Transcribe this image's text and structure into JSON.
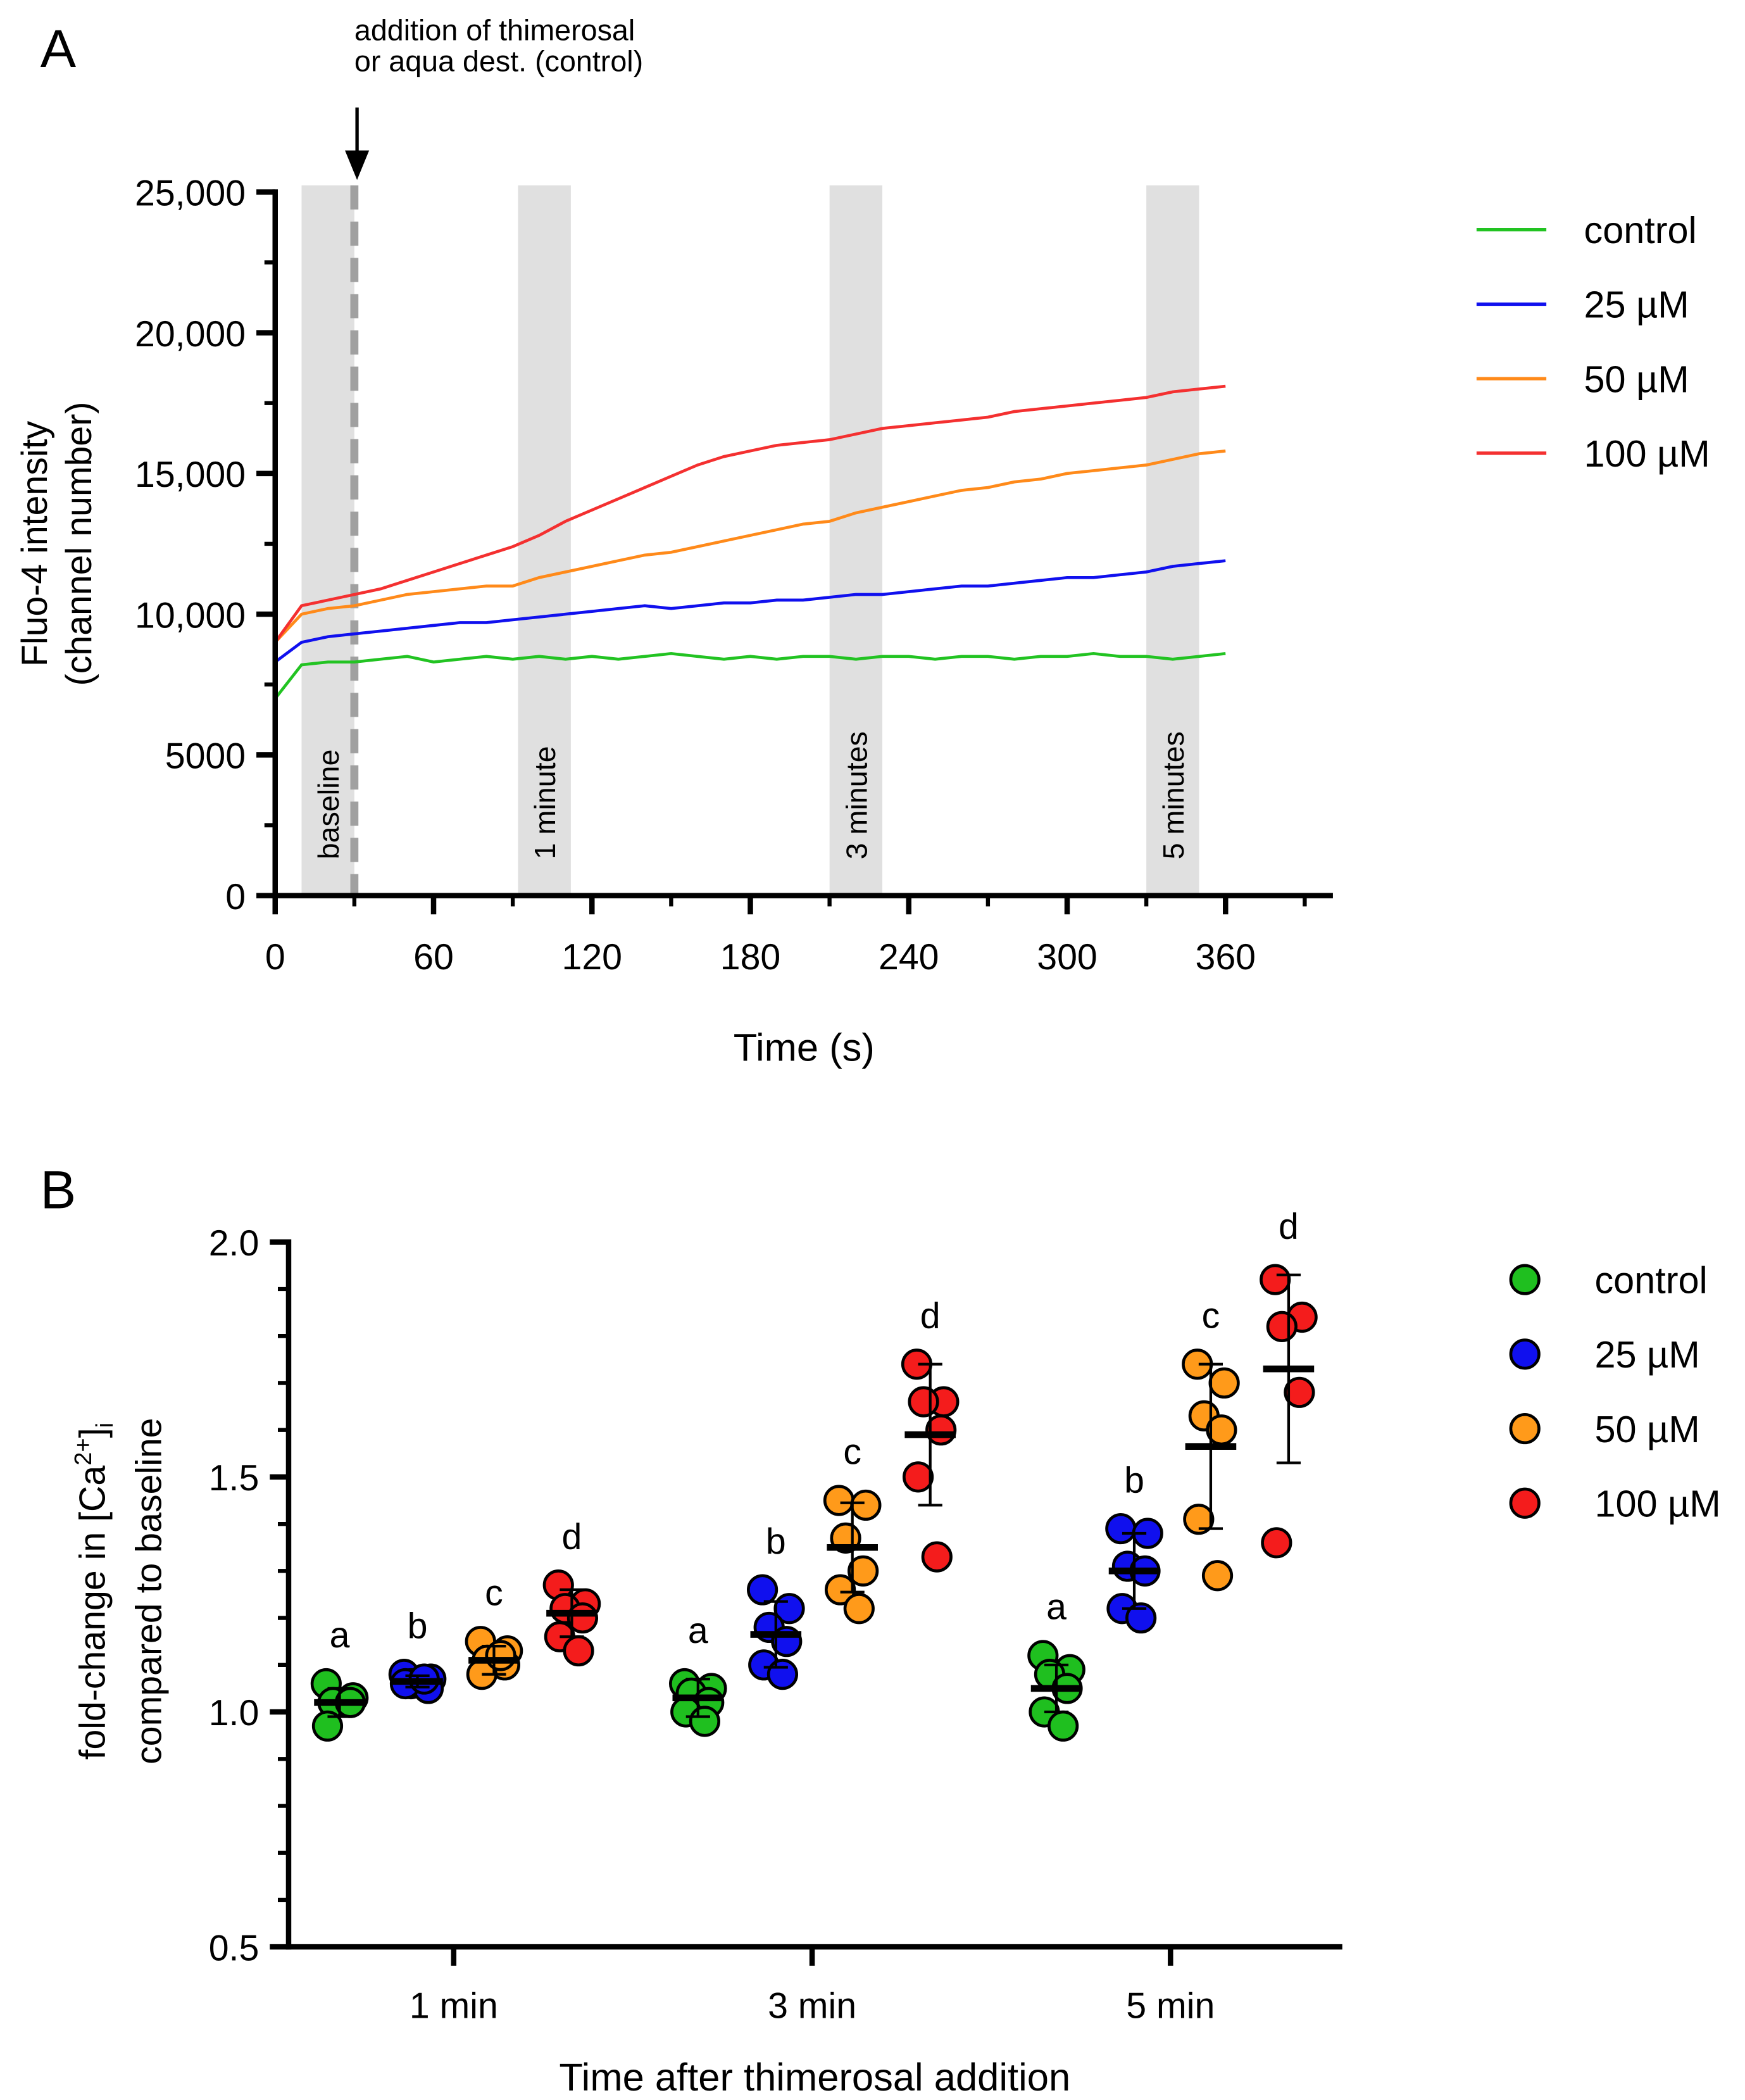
{
  "chart_data": [
    {
      "type": "line",
      "panel_label": "A",
      "xlabel": "Time (s)",
      "ylabel_lines": [
        "Fluo-4 intensity",
        "(channel number)"
      ],
      "xlim": [
        0,
        400
      ],
      "ylim": [
        0,
        25000
      ],
      "xticks": [
        0,
        60,
        120,
        180,
        240,
        300,
        360
      ],
      "yticks": [
        0,
        5000,
        10000,
        15000,
        20000,
        25000
      ],
      "ytick_labels": [
        "0",
        "5000",
        "10,000",
        "15,000",
        "20,000",
        "25,000"
      ],
      "annotation_lines": [
        "addition of thimerosal",
        "or aqua dest. (control)"
      ],
      "annotation_time": 30,
      "windows": [
        {
          "label": "baseline",
          "start": 10,
          "end": 30
        },
        {
          "label": "1 minute",
          "start": 92,
          "end": 112
        },
        {
          "label": "3 minutes",
          "start": 210,
          "end": 230
        },
        {
          "label": "5 minutes",
          "start": 330,
          "end": 350
        }
      ],
      "legend_position": "right",
      "x": [
        0,
        10,
        20,
        30,
        40,
        50,
        60,
        70,
        80,
        90,
        100,
        110,
        120,
        130,
        140,
        150,
        160,
        170,
        180,
        190,
        200,
        210,
        220,
        230,
        240,
        250,
        260,
        270,
        280,
        290,
        300,
        310,
        320,
        330,
        340,
        350,
        360
      ],
      "series": [
        {
          "name": "control",
          "color": "#22c322",
          "values": [
            7000,
            8200,
            8300,
            8300,
            8400,
            8500,
            8300,
            8400,
            8500,
            8400,
            8500,
            8400,
            8500,
            8400,
            8500,
            8600,
            8500,
            8400,
            8500,
            8400,
            8500,
            8500,
            8400,
            8500,
            8500,
            8400,
            8500,
            8500,
            8400,
            8500,
            8500,
            8600,
            8500,
            8500,
            8400,
            8500,
            8600
          ]
        },
        {
          "name": "25 µM",
          "color": "#1010ee",
          "values": [
            8300,
            9000,
            9200,
            9300,
            9400,
            9500,
            9600,
            9700,
            9700,
            9800,
            9900,
            10000,
            10100,
            10200,
            10300,
            10200,
            10300,
            10400,
            10400,
            10500,
            10500,
            10600,
            10700,
            10700,
            10800,
            10900,
            11000,
            11000,
            11100,
            11200,
            11300,
            11300,
            11400,
            11500,
            11700,
            11800,
            11900
          ]
        },
        {
          "name": "50 µM",
          "color": "#ff8a1a",
          "values": [
            9000,
            10000,
            10200,
            10300,
            10500,
            10700,
            10800,
            10900,
            11000,
            11000,
            11300,
            11500,
            11700,
            11900,
            12100,
            12200,
            12400,
            12600,
            12800,
            13000,
            13200,
            13300,
            13600,
            13800,
            14000,
            14200,
            14400,
            14500,
            14700,
            14800,
            15000,
            15100,
            15200,
            15300,
            15500,
            15700,
            15800
          ]
        },
        {
          "name": "100 µM",
          "color": "#f43030",
          "values": [
            9000,
            10300,
            10500,
            10700,
            10900,
            11200,
            11500,
            11800,
            12100,
            12400,
            12800,
            13300,
            13700,
            14100,
            14500,
            14900,
            15300,
            15600,
            15800,
            16000,
            16100,
            16200,
            16400,
            16600,
            16700,
            16800,
            16900,
            17000,
            17200,
            17300,
            17400,
            17500,
            17600,
            17700,
            17900,
            18000,
            18100
          ]
        }
      ]
    },
    {
      "type": "scatter",
      "panel_label": "B",
      "xlabel": "Time after thimerosal addition",
      "ylabel_line1": "fold-change in [Ca",
      "ylabel_sup": "2+",
      "ylabel_bracket": "]",
      "ylabel_sub": "i",
      "ylabel_line2": "compared to baseline",
      "ylim": [
        0.5,
        2.0
      ],
      "yticks": [
        0.5,
        1.0,
        1.5,
        2.0
      ],
      "ytick_labels": [
        "0.5",
        "1.0",
        "1.5",
        "2.0"
      ],
      "categories": [
        "1 min",
        "3 min",
        "5 min"
      ],
      "legend_position": "right",
      "series": [
        {
          "name": "control",
          "color": "#1fbf1f",
          "points": [
            [
              1.06,
              1.03,
              1.02,
              1.02,
              0.97
            ],
            [
              1.06,
              1.05,
              1.04,
              1.02,
              1.0,
              0.98
            ],
            [
              1.12,
              1.09,
              1.08,
              1.05,
              1.0,
              0.97
            ]
          ],
          "mean": [
            1.02,
            1.03,
            1.05
          ],
          "sd": [
            0.03,
            0.04,
            0.05
          ],
          "letters": [
            "a",
            "a",
            "a"
          ]
        },
        {
          "name": "25 µM",
          "color": "#1010ee",
          "points": [
            [
              1.08,
              1.07,
              1.06,
              1.05,
              1.06,
              1.07
            ],
            [
              1.26,
              1.22,
              1.18,
              1.15,
              1.1,
              1.08
            ],
            [
              1.39,
              1.38,
              1.31,
              1.3,
              1.22,
              1.2
            ]
          ],
          "mean": [
            1.065,
            1.165,
            1.3
          ],
          "sd": [
            0.012,
            0.07,
            0.08
          ],
          "letters": [
            "b",
            "b",
            "b"
          ]
        },
        {
          "name": "50 µM",
          "color": "#ff9a1a",
          "points": [
            [
              1.15,
              1.13,
              1.11,
              1.1,
              1.08,
              1.12
            ],
            [
              1.45,
              1.44,
              1.37,
              1.3,
              1.26,
              1.22
            ],
            [
              1.74,
              1.7,
              1.63,
              1.6,
              1.41,
              1.29
            ]
          ],
          "mean": [
            1.11,
            1.35,
            1.565
          ],
          "sd": [
            0.03,
            0.095,
            0.175
          ],
          "letters": [
            "c",
            "c",
            "c"
          ]
        },
        {
          "name": "100 µM",
          "color": "#f41c1c",
          "points": [
            [
              1.27,
              1.23,
              1.22,
              1.2,
              1.16,
              1.13
            ],
            [
              1.74,
              1.66,
              1.66,
              1.6,
              1.5,
              1.33
            ],
            [
              1.92,
              1.84,
              1.82,
              1.68,
              1.36
            ]
          ],
          "mean": [
            1.21,
            1.59,
            1.73
          ],
          "sd": [
            0.05,
            0.15,
            0.2
          ],
          "letters": [
            "d",
            "d",
            "d"
          ]
        }
      ]
    }
  ]
}
